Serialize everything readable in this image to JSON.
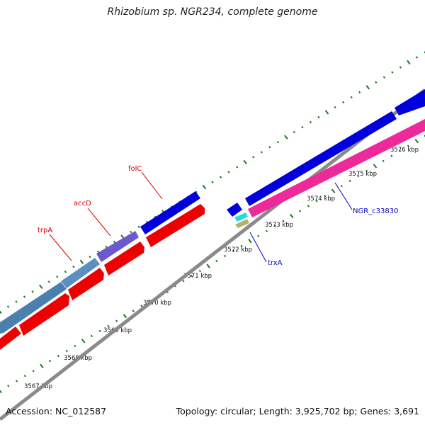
{
  "title": "Rhizobium sp. NGR234, complete genome",
  "footer": {
    "accession": "Accession: NC_012587",
    "summary": "Topology: circular; Length: 3,925,702 bp; Genes: 3,691"
  },
  "colors": {
    "backbone": "#8a8a8a",
    "tick_dot": "#1b7a1b",
    "tick_major": "#1b7a1b",
    "gene_red": "#ee0000",
    "gene_blue": "#0000dd",
    "gene_steelblue": "#4a7fae",
    "gene_purple": "#6a5acd",
    "gene_pink": "#ee2a9b",
    "gene_cyan": "#22dddd",
    "gene_olive": "#b8b070",
    "label_red": "#d40000",
    "label_blue": "#0000c8"
  },
  "scale": {
    "labels": [
      "3567 kbp",
      "3568 kbp",
      "3569 kbp",
      "3570 kbp",
      "3571 kbp",
      "3572 kbp",
      "3573 kbp",
      "3574 kbp",
      "3575 kbp",
      "3576 kbp"
    ]
  },
  "genes": [
    {
      "name": "trpA",
      "color": "label_red"
    },
    {
      "name": "accD",
      "color": "label_red"
    },
    {
      "name": "folC",
      "color": "label_red"
    },
    {
      "name": "trxA",
      "color": "label_blue"
    },
    {
      "name": "NGR_c33830",
      "color": "label_blue"
    }
  ]
}
